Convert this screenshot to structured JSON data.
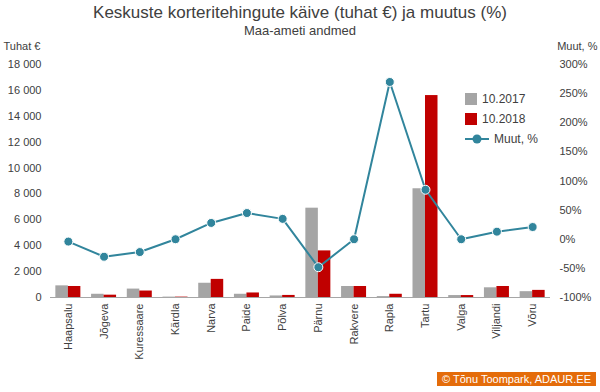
{
  "chart_data": {
    "type": "bar",
    "title": "Keskuste korteritehingute käive (tuhat €) ja muutus (%)",
    "subtitle": "Maa-ameti andmed",
    "source": "© Tõnu Toompark, ADAUR.EE",
    "ylabel": "Tuhat €",
    "y2label": "Muut, %",
    "categories": [
      "Haapsalu",
      "Jõgeva",
      "Kuressaare",
      "Kärdla",
      "Narva",
      "Paide",
      "Põlva",
      "Pärnu",
      "Rakvere",
      "Rapla",
      "Tartu",
      "Valga",
      "Viljandi",
      "Võru"
    ],
    "series": [
      {
        "name": "10.2017",
        "color": "#a5a5a5",
        "values": [
          900,
          250,
          650,
          30,
          1100,
          250,
          120,
          6900,
          850,
          70,
          8400,
          150,
          750,
          450
        ]
      },
      {
        "name": "10.2018",
        "color": "#c00000",
        "values": [
          850,
          180,
          500,
          30,
          1400,
          350,
          160,
          3600,
          850,
          250,
          15600,
          150,
          850,
          550
        ]
      },
      {
        "name": "Muut, %",
        "type": "line",
        "axis": "y2",
        "color": "#31859c",
        "marker": "circle",
        "values": [
          -4,
          -30,
          -22,
          0,
          28,
          45,
          35,
          -48,
          0,
          270,
          85,
          0,
          13,
          21
        ]
      }
    ],
    "ylim": [
      0,
      18000
    ],
    "yticks": [
      0,
      {
        "value": 2000,
        "label": "2 000"
      },
      {
        "value": 4000,
        "label": "4 000"
      },
      {
        "value": 6000,
        "label": "6 000"
      },
      {
        "value": 8000,
        "label": "8 000"
      },
      {
        "value": 10000,
        "label": "10 000"
      },
      {
        "value": 12000,
        "label": "12 000"
      },
      {
        "value": 14000,
        "label": "14 000"
      },
      {
        "value": 16000,
        "label": "16 000"
      },
      {
        "value": 18000,
        "label": "18 000"
      }
    ],
    "y2lim": [
      -100,
      300
    ],
    "y2ticks": [
      {
        "value": -100,
        "label": "-100%"
      },
      {
        "value": -50,
        "label": "-50%"
      },
      {
        "value": 0,
        "label": "0%"
      },
      {
        "value": 50,
        "label": "50%"
      },
      {
        "value": 100,
        "label": "100%"
      },
      {
        "value": 150,
        "label": "150%"
      },
      {
        "value": 200,
        "label": "200%"
      },
      {
        "value": 250,
        "label": "250%"
      },
      {
        "value": 300,
        "label": "300%"
      }
    ],
    "grid": false,
    "legend": "top-right"
  }
}
